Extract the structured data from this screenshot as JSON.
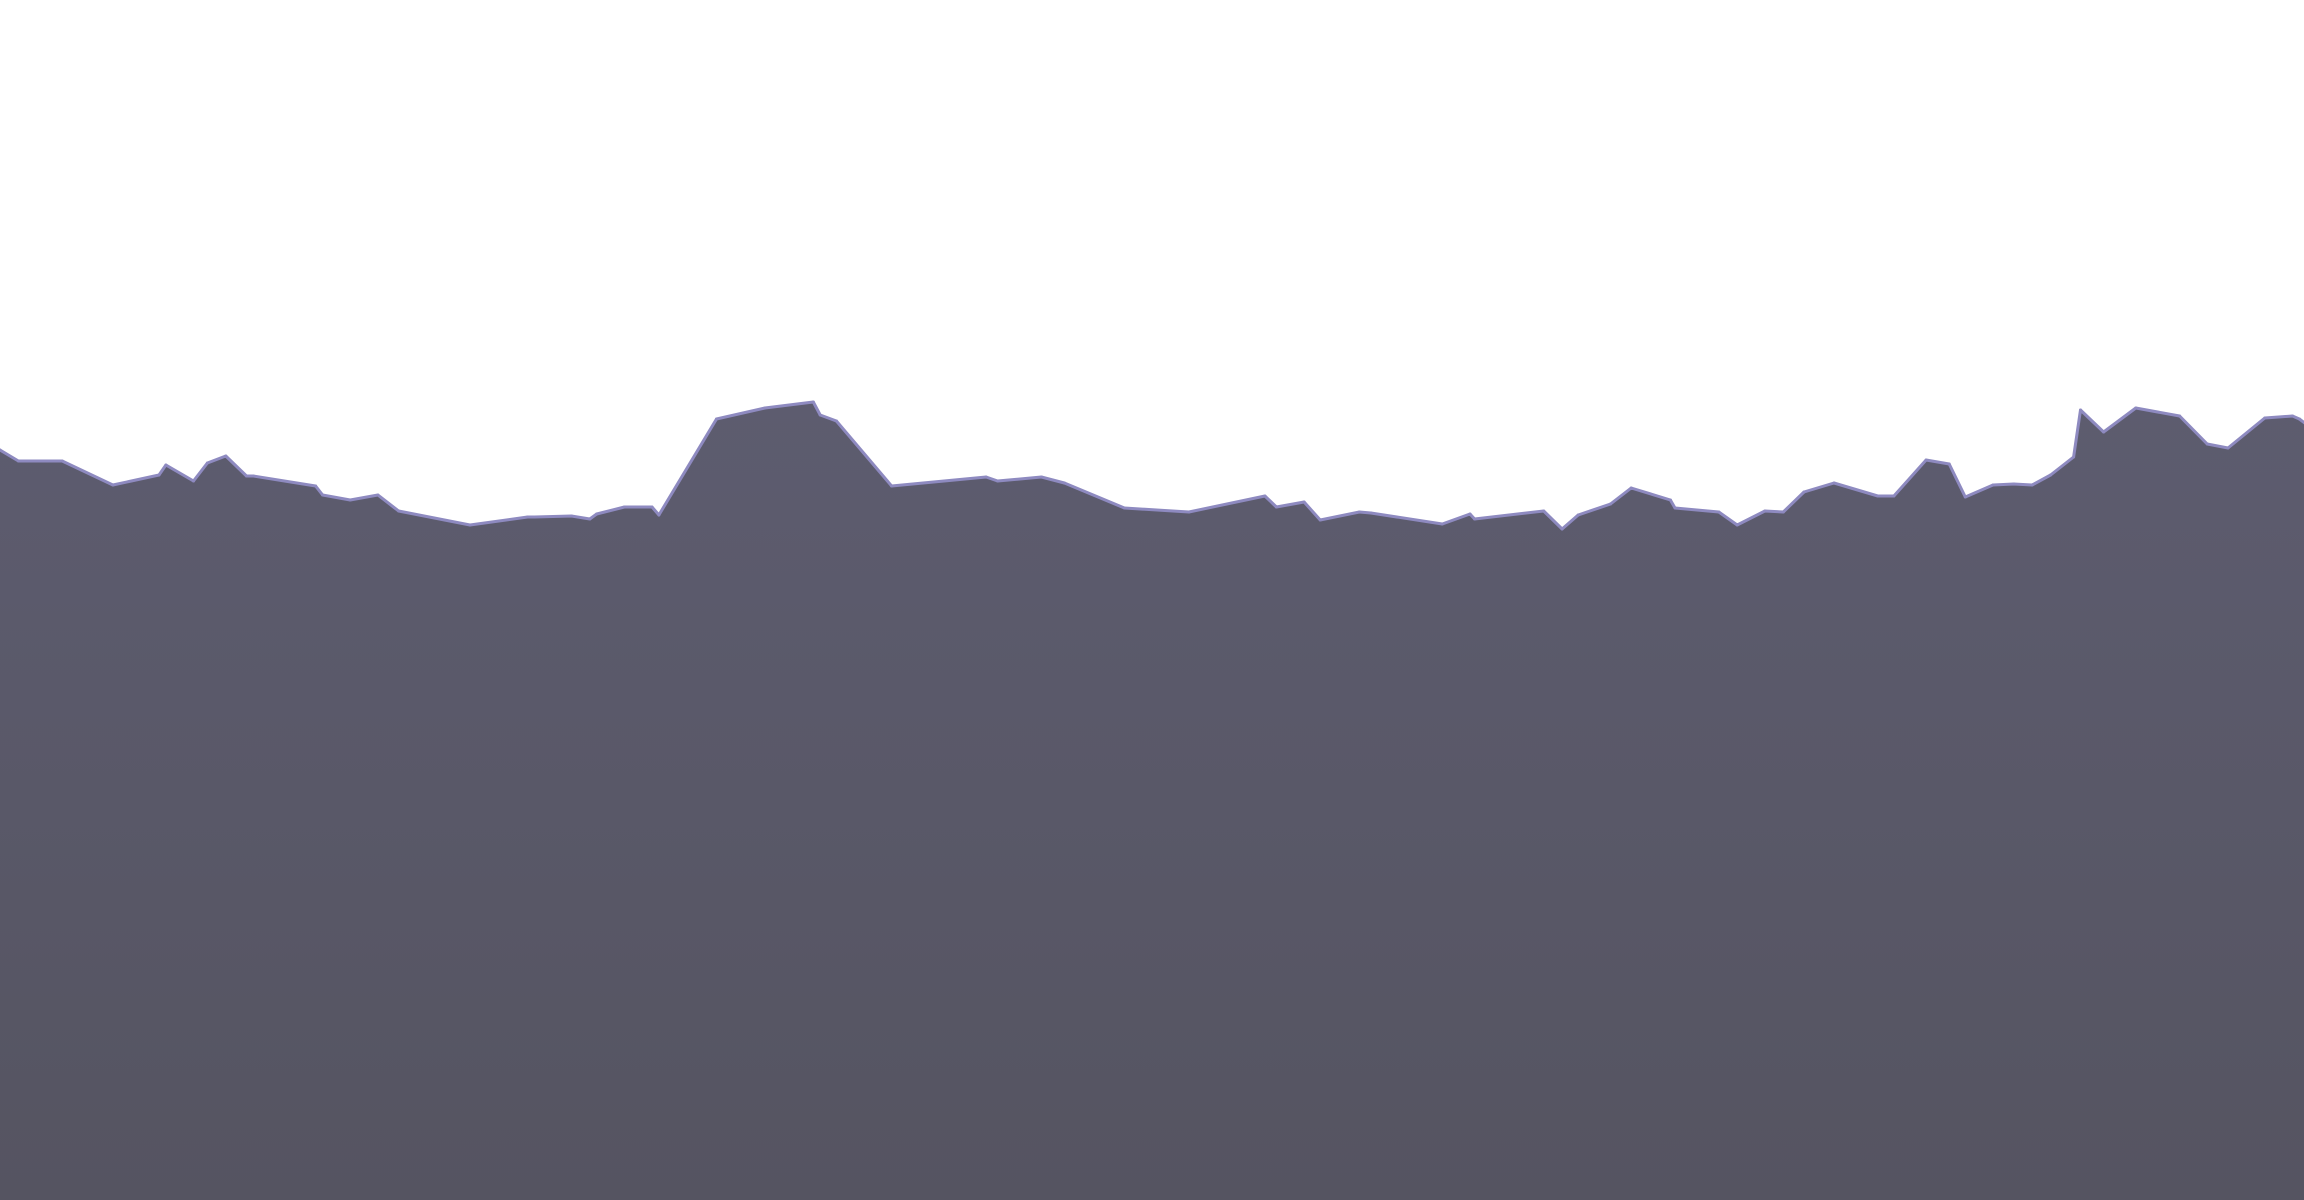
{
  "chart_data": {
    "type": "area",
    "title": "",
    "xlabel": "",
    "ylabel": "",
    "grid": false,
    "legend": "none",
    "ylim": [
      0,
      1200
    ],
    "colors": {
      "fill_top": "#5d5c6f",
      "fill_bottom": "#555461",
      "line": "#8e8ac0",
      "background": "#ffffff"
    },
    "series": [
      {
        "x": [
          0,
          0.8,
          2.7,
          4.9,
          6.9,
          7.2,
          8.4,
          9.0,
          9.8,
          10.7,
          11.0,
          13.7,
          14.0,
          15.2,
          16.4,
          17.3,
          20.4,
          22.9,
          23.2,
          24.8,
          25.6,
          25.9,
          27.1,
          28.3,
          28.6,
          31.1,
          33.2,
          35.3,
          35.6,
          36.3,
          38.7,
          42.8,
          43.3,
          45.2,
          46.2,
          48.8,
          51.6,
          54.9,
          55.4,
          56.6,
          57.3,
          59.0,
          59.5,
          62.6,
          63.8,
          64.0,
          67.0,
          67.8,
          68.5,
          69.9,
          70.8,
          72.5,
          72.7,
          74.6,
          75.4,
          76.6,
          77.4,
          78.3,
          79.6,
          81.5,
          82.2,
          83.6,
          84.6,
          85.3,
          86.5,
          87.4,
          88.2,
          89.0,
          90.0,
          90.3,
          91.3,
          92.7,
          94.6,
          95.8,
          96.7,
          98.3,
          99.5,
          99.8,
          100.2
        ],
        "values": [
          750,
          739,
          739,
          715,
          725,
          735,
          719,
          737,
          744,
          724,
          724,
          714,
          705,
          700,
          705,
          689,
          675,
          683,
          683,
          684,
          681,
          686,
          693,
          693,
          685,
          781,
          792,
          798,
          785,
          779,
          714,
          723,
          719,
          723,
          717,
          692,
          688,
          704,
          693,
          698,
          680,
          688,
          687,
          676,
          686,
          681,
          689,
          671,
          685,
          696,
          712,
          700,
          692,
          688,
          675,
          689,
          688,
          708,
          717,
          704,
          704,
          740,
          736,
          703,
          715,
          716,
          715,
          725,
          743,
          790,
          768,
          792,
          784,
          756,
          752,
          782,
          784,
          781,
          774
        ]
      }
    ]
  }
}
